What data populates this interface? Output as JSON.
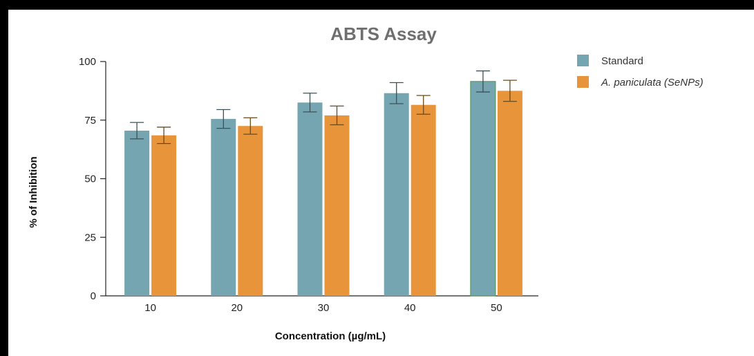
{
  "chart_data": {
    "type": "bar",
    "title": "ABTS Assay",
    "xlabel": "Concentration (µg/mL)",
    "ylabel": "% of Inhibition",
    "categories": [
      "10",
      "20",
      "30",
      "40",
      "50"
    ],
    "ylim": [
      0,
      100
    ],
    "yticks": [
      0,
      25,
      50,
      75,
      100
    ],
    "grid": false,
    "legend_position": "top-right",
    "series": [
      {
        "name": "Standard",
        "color": "#75a5b0",
        "values": [
          70.5,
          75.5,
          82.5,
          86.5,
          91.5
        ],
        "errors": [
          3.5,
          4.0,
          4.0,
          4.5,
          4.5
        ],
        "error_color": "#3d5055"
      },
      {
        "name": "A. paniculata (SeNPs)",
        "color": "#e8943a",
        "values": [
          68.5,
          72.5,
          77.0,
          81.5,
          87.5
        ],
        "errors": [
          3.5,
          3.5,
          4.0,
          4.0,
          4.5
        ],
        "error_color": "#6b4a1a"
      }
    ]
  }
}
